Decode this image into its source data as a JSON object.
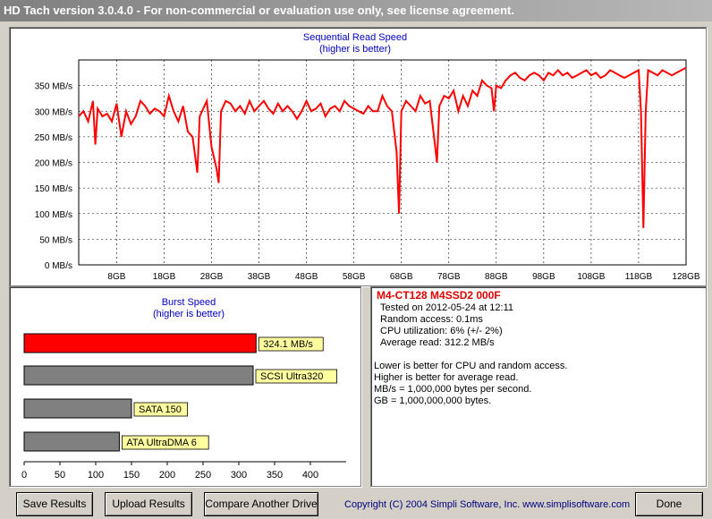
{
  "window": {
    "title": "HD Tach version 3.0.4.0  - For non-commercial or evaluation use only, see license agreement."
  },
  "seq_chart": {
    "title_line1": "Sequential Read Speed",
    "title_line2": "(higher is better)"
  },
  "burst_chart": {
    "title_line1": "Burst Speed",
    "title_line2": "(higher is better)"
  },
  "chart_data": [
    {
      "type": "line",
      "title": "Sequential Read Speed",
      "subtitle": "(higher is better)",
      "x_ticks": [
        "8GB",
        "18GB",
        "28GB",
        "38GB",
        "48GB",
        "58GB",
        "68GB",
        "78GB",
        "88GB",
        "98GB",
        "108GB",
        "118GB",
        "128GB"
      ],
      "y_ticks": [
        "0 MB/s",
        "50 MB/s",
        "100 MB/s",
        "150 MB/s",
        "200 MB/s",
        "250 MB/s",
        "300 MB/s",
        "350 MB/s"
      ],
      "xlim": [
        0,
        128
      ],
      "ylim": [
        0,
        400
      ],
      "grid": true,
      "color": "#ff0000",
      "series": [
        {
          "x": [
            0,
            1,
            2,
            3,
            3.5,
            4,
            5,
            6,
            7,
            8,
            9,
            10,
            11,
            12,
            13,
            14,
            15,
            16,
            17,
            18,
            19,
            20,
            21,
            22,
            23,
            24,
            25,
            25.5,
            26,
            27,
            28,
            29,
            29.5,
            30,
            31,
            32,
            33,
            34,
            35,
            36,
            37,
            38,
            39,
            40,
            41,
            42,
            43,
            44,
            45,
            46,
            47,
            48,
            49,
            50,
            51,
            52,
            53,
            54,
            55,
            56,
            57,
            58,
            59,
            60,
            61,
            62,
            63,
            64,
            65,
            66,
            67,
            67.5,
            68,
            69,
            70,
            71,
            72,
            73,
            74,
            75,
            75.5,
            76,
            77,
            78,
            79,
            80,
            81,
            82,
            83,
            84,
            85,
            86,
            87,
            87.5,
            88,
            89,
            90,
            91,
            92,
            93,
            94,
            95,
            96,
            97,
            98,
            99,
            100,
            101,
            102,
            103,
            104,
            105,
            106,
            107,
            108,
            109,
            110,
            111,
            112,
            113,
            114,
            115,
            116,
            117,
            118,
            118.5,
            119,
            119.5,
            120,
            121,
            122,
            123,
            124,
            125,
            126,
            127,
            128
          ],
          "values": [
            290,
            300,
            280,
            320,
            235,
            305,
            290,
            295,
            280,
            315,
            250,
            300,
            275,
            290,
            320,
            310,
            295,
            305,
            300,
            290,
            330,
            300,
            280,
            310,
            260,
            250,
            180,
            290,
            300,
            320,
            230,
            190,
            160,
            300,
            320,
            315,
            300,
            310,
            295,
            320,
            300,
            310,
            320,
            305,
            295,
            315,
            300,
            310,
            300,
            285,
            300,
            320,
            300,
            305,
            315,
            290,
            305,
            310,
            300,
            320,
            310,
            305,
            300,
            295,
            310,
            300,
            300,
            330,
            310,
            300,
            220,
            100,
            300,
            320,
            310,
            300,
            330,
            315,
            320,
            240,
            200,
            310,
            330,
            325,
            340,
            300,
            330,
            310,
            340,
            330,
            360,
            350,
            345,
            300,
            350,
            345,
            360,
            370,
            375,
            365,
            360,
            370,
            375,
            370,
            360,
            375,
            370,
            380,
            370,
            375,
            365,
            370,
            375,
            380,
            370,
            375,
            365,
            370,
            380,
            375,
            370,
            365,
            370,
            375,
            380,
            300,
            72,
            300,
            380,
            375,
            370,
            380,
            375,
            370,
            375,
            380,
            385
          ]
        }
      ]
    },
    {
      "type": "bar",
      "orientation": "horizontal",
      "title": "Burst Speed",
      "subtitle": "(higher is better)",
      "xlim": [
        0,
        450
      ],
      "x_ticks": [
        "0",
        "50",
        "100",
        "150",
        "200",
        "250",
        "300",
        "350",
        "400"
      ],
      "categories": [
        "324.1 MB/s",
        "SCSI Ultra320",
        "SATA 150",
        "ATA UltraDMA 6"
      ],
      "values": [
        324.1,
        320,
        150,
        133
      ],
      "bar_colors": [
        "#ff0000",
        "#808080",
        "#808080",
        "#808080"
      ],
      "label_bg": "#ffffa0"
    }
  ],
  "info": {
    "drive_name": "M4-CT128 M4SSD2 000F",
    "tested": "Tested on 2012-05-24 at 12:11",
    "random_access": "Random access: 0.1ms",
    "cpu": "CPU utilization: 6% (+/- 2%)",
    "avg_read": "Average read: 312.2 MB/s",
    "note1": "Lower is better for CPU and random access.",
    "note2": "Higher is better for average read.",
    "note3": "MB/s = 1,000,000 bytes per second.",
    "note4": "GB = 1,000,000,000 bytes."
  },
  "buttons": {
    "save": "Save Results",
    "upload": "Upload Results",
    "compare": "Compare Another Drive",
    "done": "Done"
  },
  "copyright": "Copyright (C) 2004 Simpli Software, Inc. www.simplisoftware.com"
}
